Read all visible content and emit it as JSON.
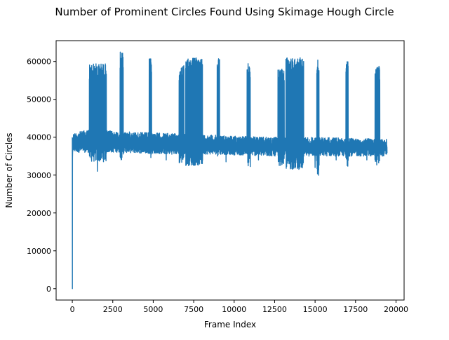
{
  "chart_data": {
    "type": "line",
    "title": "Number of Prominent Circles Found Using Skimage Hough Circle",
    "xlabel": "Frame Index",
    "ylabel": "Number of Circles",
    "xlim": [
      -1000,
      20500
    ],
    "ylim": [
      -3000,
      65500
    ],
    "xticks": [
      0,
      2500,
      5000,
      7500,
      10000,
      12500,
      15000,
      17500,
      20000
    ],
    "yticks": [
      0,
      10000,
      20000,
      30000,
      40000,
      50000,
      60000
    ],
    "grid": false,
    "legend": "none",
    "series": [
      {
        "color": "#1f77b4",
        "x_range": [
          0,
          19450
        ],
        "initial_points": [
          [
            0,
            40000
          ],
          [
            5,
            0
          ],
          [
            12,
            34500
          ],
          [
            30,
            39000
          ]
        ],
        "baseline": [
          [
            0,
            36000,
            41000
          ],
          [
            1000,
            36000,
            42000
          ],
          [
            3000,
            36000,
            41500
          ],
          [
            6000,
            35500,
            41000
          ],
          [
            9000,
            35500,
            40500
          ],
          [
            12000,
            35000,
            40000
          ],
          [
            15000,
            35000,
            40000
          ],
          [
            19450,
            35000,
            39500
          ]
        ],
        "bursts": [
          [
            1050,
            2100,
            59500,
            33500
          ],
          [
            2950,
            3150,
            62500,
            34000
          ],
          [
            4750,
            4900,
            61000,
            34500
          ],
          [
            6600,
            6900,
            59000,
            33000
          ],
          [
            7000,
            8050,
            61000,
            32500
          ],
          [
            8950,
            9100,
            61500,
            35000
          ],
          [
            10800,
            11000,
            59500,
            32000
          ],
          [
            12700,
            13100,
            58000,
            32500
          ],
          [
            13200,
            14300,
            61000,
            31500
          ],
          [
            15100,
            15250,
            60500,
            29500
          ],
          [
            16900,
            17050,
            60000,
            32000
          ],
          [
            18700,
            19000,
            59000,
            32500
          ]
        ],
        "dips": [
          [
            1550,
            31000
          ],
          [
            5800,
            34000
          ],
          [
            9500,
            33500
          ],
          [
            11500,
            34000
          ],
          [
            15000,
            32000
          ],
          [
            16300,
            34000
          ],
          [
            18200,
            34000
          ]
        ]
      }
    ]
  }
}
